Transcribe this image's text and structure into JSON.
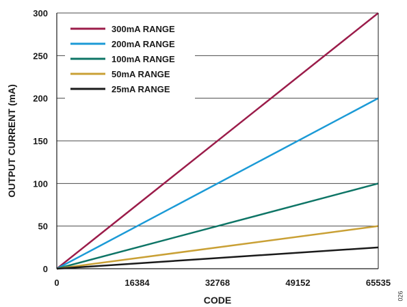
{
  "chart_data": {
    "type": "line",
    "title": "",
    "xlabel": "CODE",
    "ylabel": "OUTPUT CURRENT (mA)",
    "xlim": [
      0,
      65535
    ],
    "ylim": [
      0,
      300
    ],
    "xticks": [
      0,
      16384,
      32768,
      49152,
      65535
    ],
    "xtick_labels": [
      "0",
      "16384",
      "32768",
      "49152",
      "65535"
    ],
    "yticks": [
      0,
      50,
      100,
      150,
      200,
      250,
      300
    ],
    "ytick_labels": [
      "0",
      "50",
      "100",
      "150",
      "200",
      "250",
      "300"
    ],
    "grid": "horizontal",
    "legend_position": "top-left",
    "series": [
      {
        "name": "300mA RANGE",
        "color": "#9b1c4a",
        "x": [
          0,
          65535
        ],
        "y": [
          0,
          300
        ]
      },
      {
        "name": "200mA RANGE",
        "color": "#1b9ad6",
        "x": [
          0,
          65535
        ],
        "y": [
          0,
          200
        ]
      },
      {
        "name": "100mA RANGE",
        "color": "#0e7566",
        "x": [
          0,
          65535
        ],
        "y": [
          0,
          100
        ]
      },
      {
        "name": "50mA RANGE",
        "color": "#c9a035",
        "x": [
          0,
          65535
        ],
        "y": [
          0,
          50
        ]
      },
      {
        "name": "25mA RANGE",
        "color": "#1a1a1a",
        "x": [
          0,
          65535
        ],
        "y": [
          0,
          25
        ]
      }
    ]
  },
  "figure_code": "026"
}
